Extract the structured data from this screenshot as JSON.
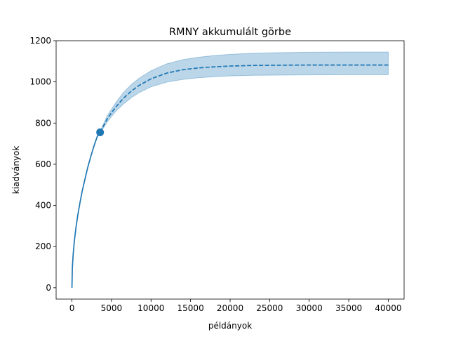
{
  "chart_data": {
    "type": "line",
    "title": "RMNY akkumulált görbe",
    "xlabel": "példányok",
    "ylabel": "kiadványok",
    "xlim": [
      -2000,
      42000
    ],
    "ylim": [
      -55,
      1200
    ],
    "xticks": [
      0,
      5000,
      10000,
      15000,
      20000,
      25000,
      30000,
      35000,
      40000
    ],
    "yticks": [
      0,
      200,
      400,
      600,
      800,
      1000,
      1200
    ],
    "grid": false,
    "legend": "none",
    "colors": {
      "line": "#1f77b4",
      "band": "#1f77b4"
    },
    "series": [
      {
        "style": "solid",
        "x": [
          0,
          50,
          150,
          300,
          500,
          750,
          1000,
          1300,
          1600,
          2000,
          2400,
          2800,
          3200,
          3560
        ],
        "y": [
          0,
          95,
          160,
          225,
          290,
          355,
          410,
          470,
          520,
          585,
          640,
          690,
          735,
          755
        ]
      },
      {
        "style": "dashed",
        "x": [
          3560,
          4500,
          5500,
          6500,
          7500,
          8500,
          10000,
          12000,
          14000,
          16000,
          18000,
          20000,
          23000,
          26000,
          30000,
          35000,
          40000
        ],
        "y": [
          755,
          823,
          876,
          920,
          955,
          983,
          1015,
          1043,
          1059,
          1068,
          1073,
          1077,
          1080,
          1081,
          1082,
          1082,
          1082
        ]
      }
    ],
    "band": {
      "x": [
        3560,
        4500,
        5500,
        6500,
        7500,
        8500,
        10000,
        12000,
        14000,
        16000,
        18000,
        20000,
        23000,
        26000,
        30000,
        35000,
        40000
      ],
      "upper": [
        760,
        838,
        897,
        948,
        987,
        1018,
        1054,
        1088,
        1108,
        1120,
        1128,
        1134,
        1139,
        1142,
        1144,
        1145,
        1145
      ],
      "lower": [
        750,
        808,
        855,
        892,
        923,
        948,
        976,
        999,
        1012,
        1020,
        1025,
        1029,
        1032,
        1033,
        1034,
        1035,
        1035
      ]
    },
    "marker": {
      "x": 3560,
      "y": 755
    }
  }
}
